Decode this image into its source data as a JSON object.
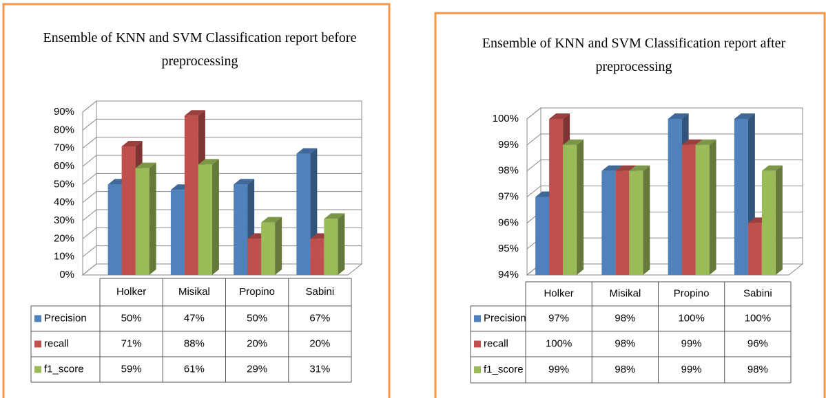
{
  "chart_data": [
    {
      "type": "bar",
      "title": "Ensemble of KNN and SVM Classification report before preprocessing",
      "categories": [
        "Holker",
        "Misikal",
        "Propino",
        "Sabini"
      ],
      "series": [
        {
          "name": "Precision",
          "color": "#4f81bd",
          "values": [
            50,
            47,
            50,
            67
          ],
          "value_labels": [
            "50%",
            "47%",
            "50%",
            "67%"
          ]
        },
        {
          "name": "recall",
          "color": "#c0504d",
          "values": [
            71,
            88,
            20,
            20
          ],
          "value_labels": [
            "71%",
            "88%",
            "20%",
            "20%"
          ]
        },
        {
          "name": "f1_score",
          "color": "#9bbb59",
          "values": [
            59,
            61,
            29,
            31
          ],
          "value_labels": [
            "59%",
            "61%",
            "29%",
            "31%"
          ]
        }
      ],
      "ylim": [
        0,
        90
      ],
      "yticks": [
        {
          "value": 0,
          "label": "0%"
        },
        {
          "value": 10,
          "label": "10%"
        },
        {
          "value": 20,
          "label": "20%"
        },
        {
          "value": 30,
          "label": "30%"
        },
        {
          "value": 40,
          "label": "40%"
        },
        {
          "value": 50,
          "label": "50%"
        },
        {
          "value": 60,
          "label": "60%"
        },
        {
          "value": 70,
          "label": "70%"
        },
        {
          "value": 80,
          "label": "80%"
        },
        {
          "value": 90,
          "label": "90%"
        }
      ],
      "grid": true
    },
    {
      "type": "bar",
      "title": "Ensemble of KNN and SVM Classification report after preprocessing",
      "categories": [
        "Holker",
        "Misikal",
        "Propino",
        "Sabini"
      ],
      "series": [
        {
          "name": "Precision",
          "color": "#4f81bd",
          "values": [
            97,
            98,
            100,
            100
          ],
          "value_labels": [
            "97%",
            "98%",
            "100%",
            "100%"
          ]
        },
        {
          "name": "recall",
          "color": "#c0504d",
          "values": [
            100,
            98,
            99,
            96
          ],
          "value_labels": [
            "100%",
            "98%",
            "99%",
            "96%"
          ]
        },
        {
          "name": "f1_score",
          "color": "#9bbb59",
          "values": [
            99,
            98,
            99,
            98
          ],
          "value_labels": [
            "99%",
            "98%",
            "99%",
            "98%"
          ]
        }
      ],
      "ylim": [
        94,
        100
      ],
      "yticks": [
        {
          "value": 94,
          "label": "94%"
        },
        {
          "value": 95,
          "label": "95%"
        },
        {
          "value": 96,
          "label": "96%"
        },
        {
          "value": 97,
          "label": "97%"
        },
        {
          "value": 98,
          "label": "98%"
        },
        {
          "value": 99,
          "label": "99%"
        },
        {
          "value": 100,
          "label": "100%"
        }
      ],
      "grid": true
    }
  ]
}
